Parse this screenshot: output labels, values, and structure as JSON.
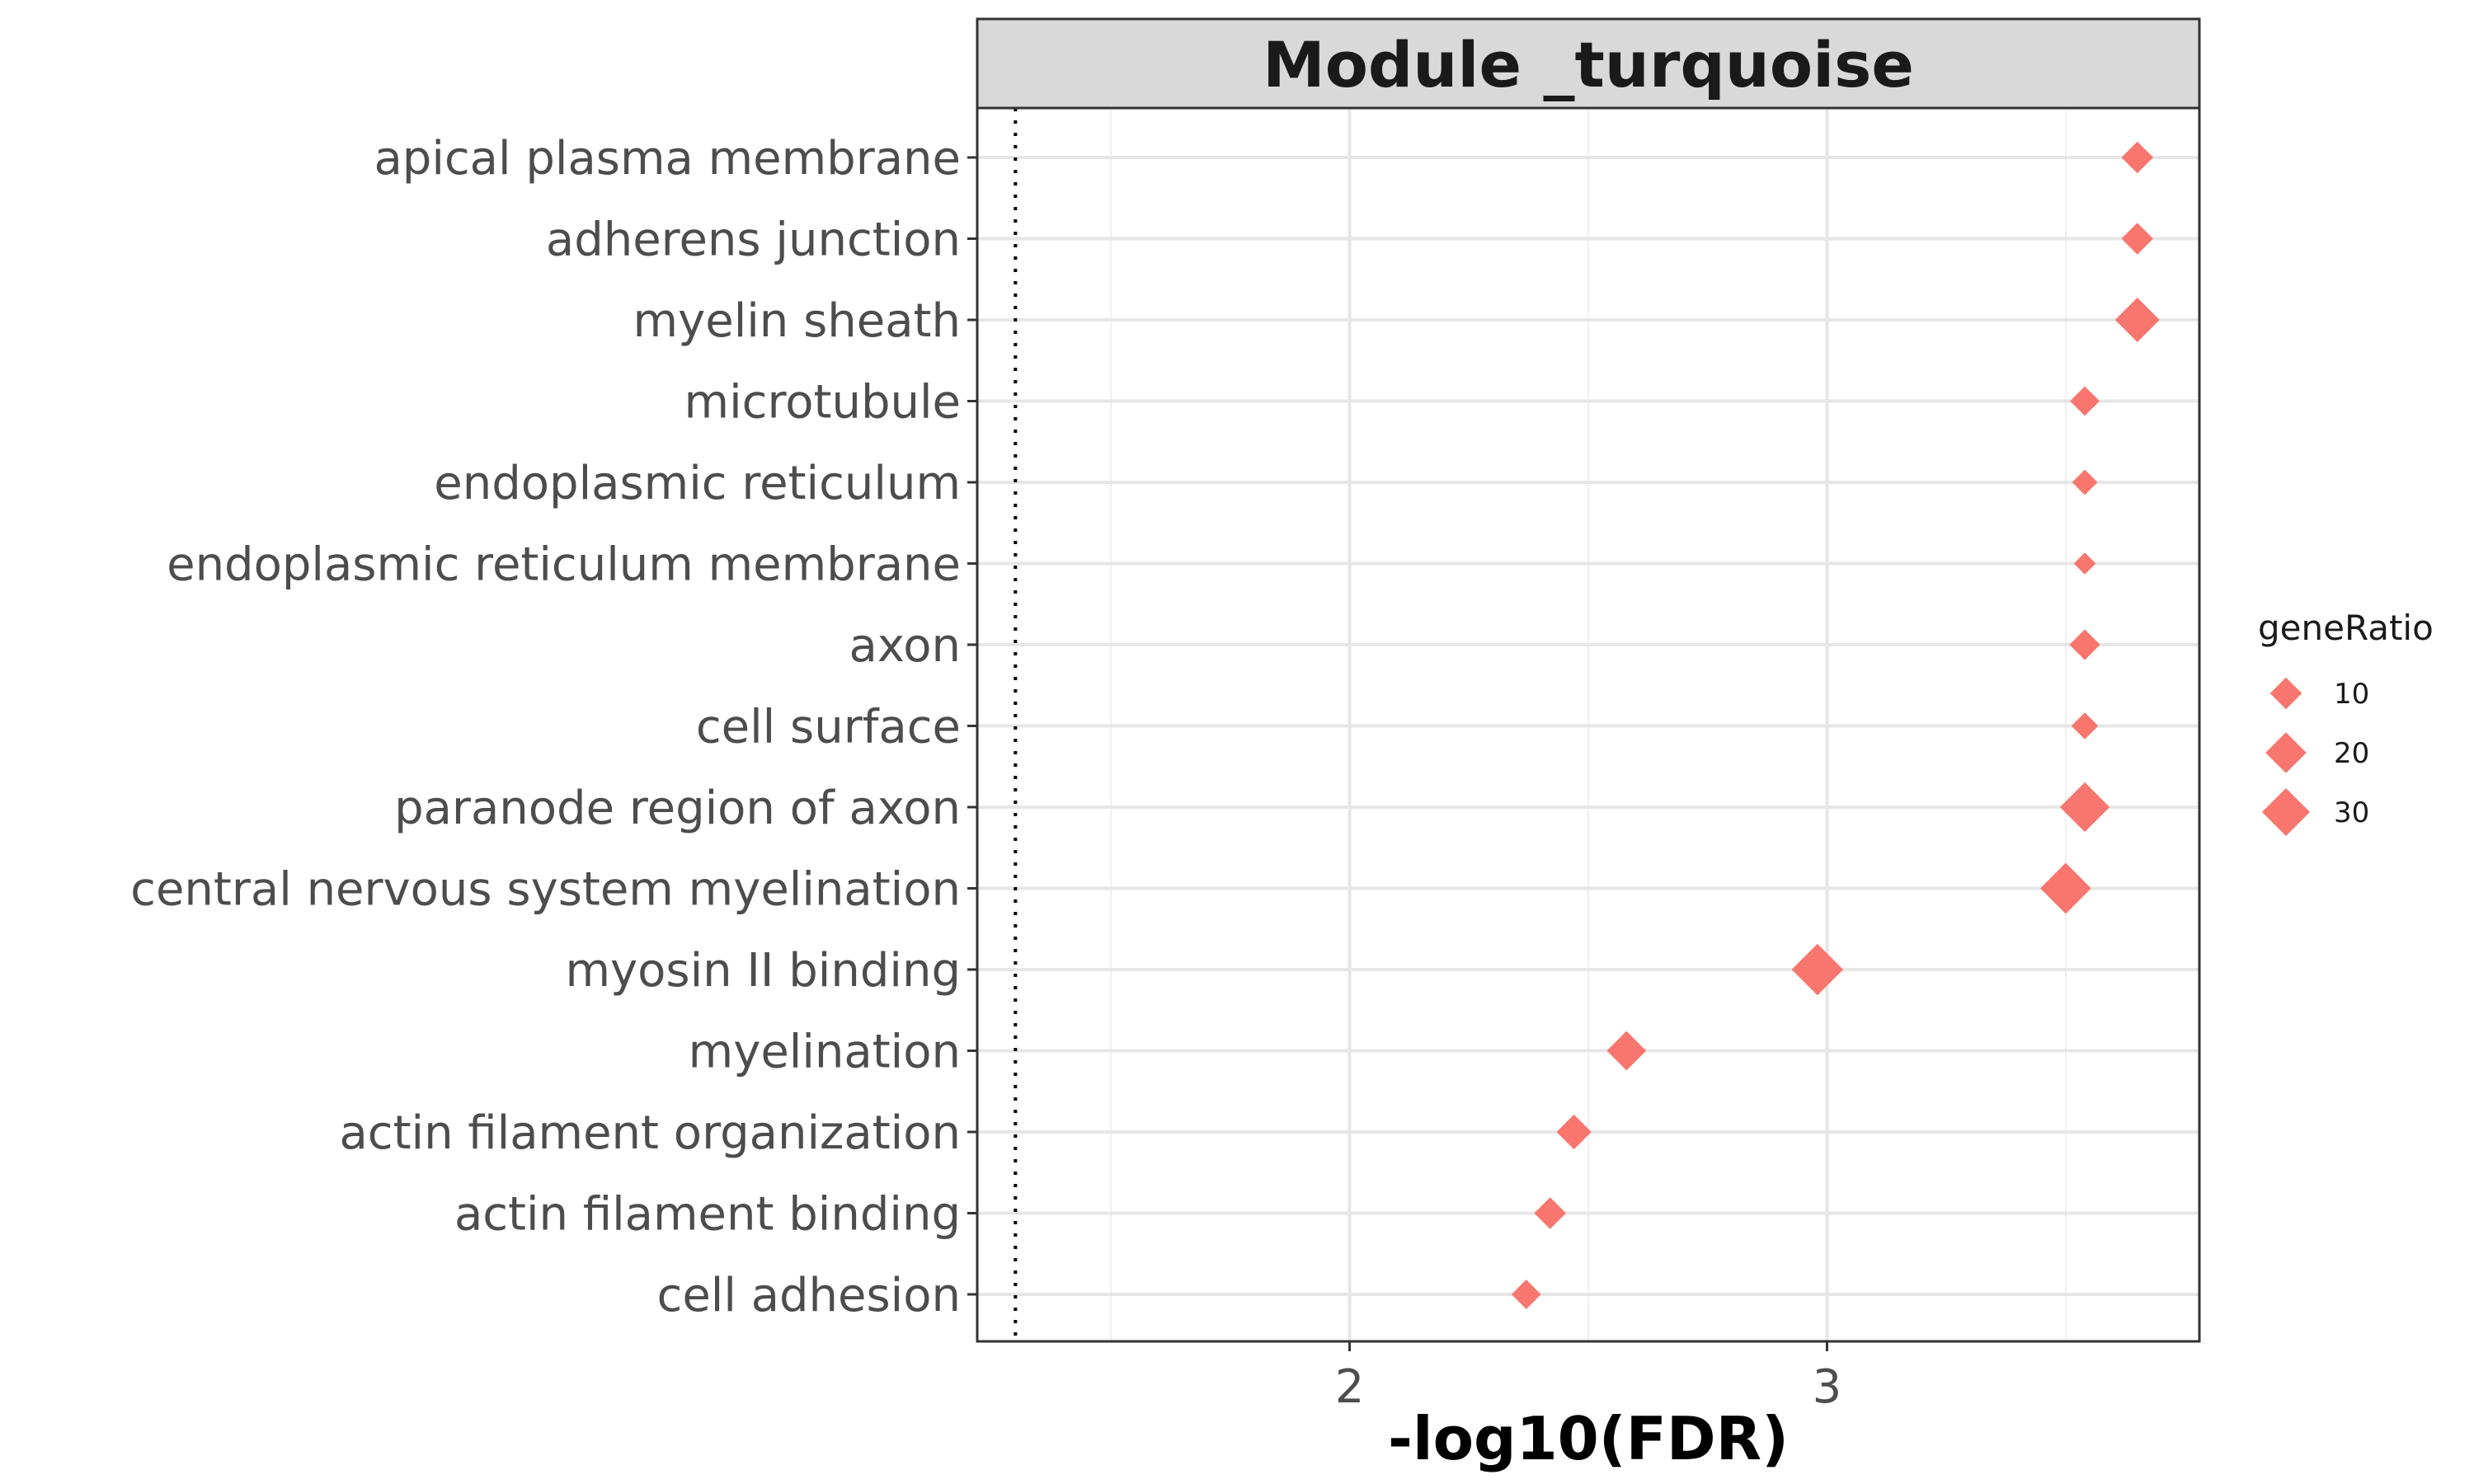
{
  "chart_data": {
    "type": "scatter",
    "title": "Module _turquoise",
    "xlabel": "-log10(FDR)",
    "ylabel": "",
    "xlim": [
      1.22,
      3.78
    ],
    "xticks": [
      2,
      3
    ],
    "minor_xticks": [
      1.5,
      2.5,
      3.5
    ],
    "grid": true,
    "threshold_line": 1.3,
    "marker": "diamond",
    "color": "#f8766d",
    "categories": [
      "apical plasma membrane",
      "adherens junction",
      "myelin sheath",
      "microtubule",
      "endoplasmic reticulum",
      "endoplasmic reticulum membrane",
      "axon",
      "cell surface",
      "paranode region of axon",
      "central nervous system myelination",
      "myosin II binding",
      "myelination",
      "actin filament organization",
      "actin filament binding",
      "cell adhesion"
    ],
    "series": [
      {
        "x": [
          3.65,
          3.65,
          3.65,
          3.54,
          3.54,
          3.54,
          3.54,
          3.54,
          3.54,
          3.5,
          2.98,
          2.58,
          2.47,
          2.42,
          2.37
        ],
        "geneRatio": [
          10,
          10,
          25,
          8,
          5,
          3,
          9,
          6,
          33,
          35,
          36,
          18,
          13,
          10,
          8
        ]
      }
    ],
    "legend": {
      "title": "geneRatio",
      "position": "right",
      "items": [
        {
          "label": "10",
          "value": 10
        },
        {
          "label": "20",
          "value": 20
        },
        {
          "label": "30",
          "value": 30
        }
      ]
    }
  }
}
